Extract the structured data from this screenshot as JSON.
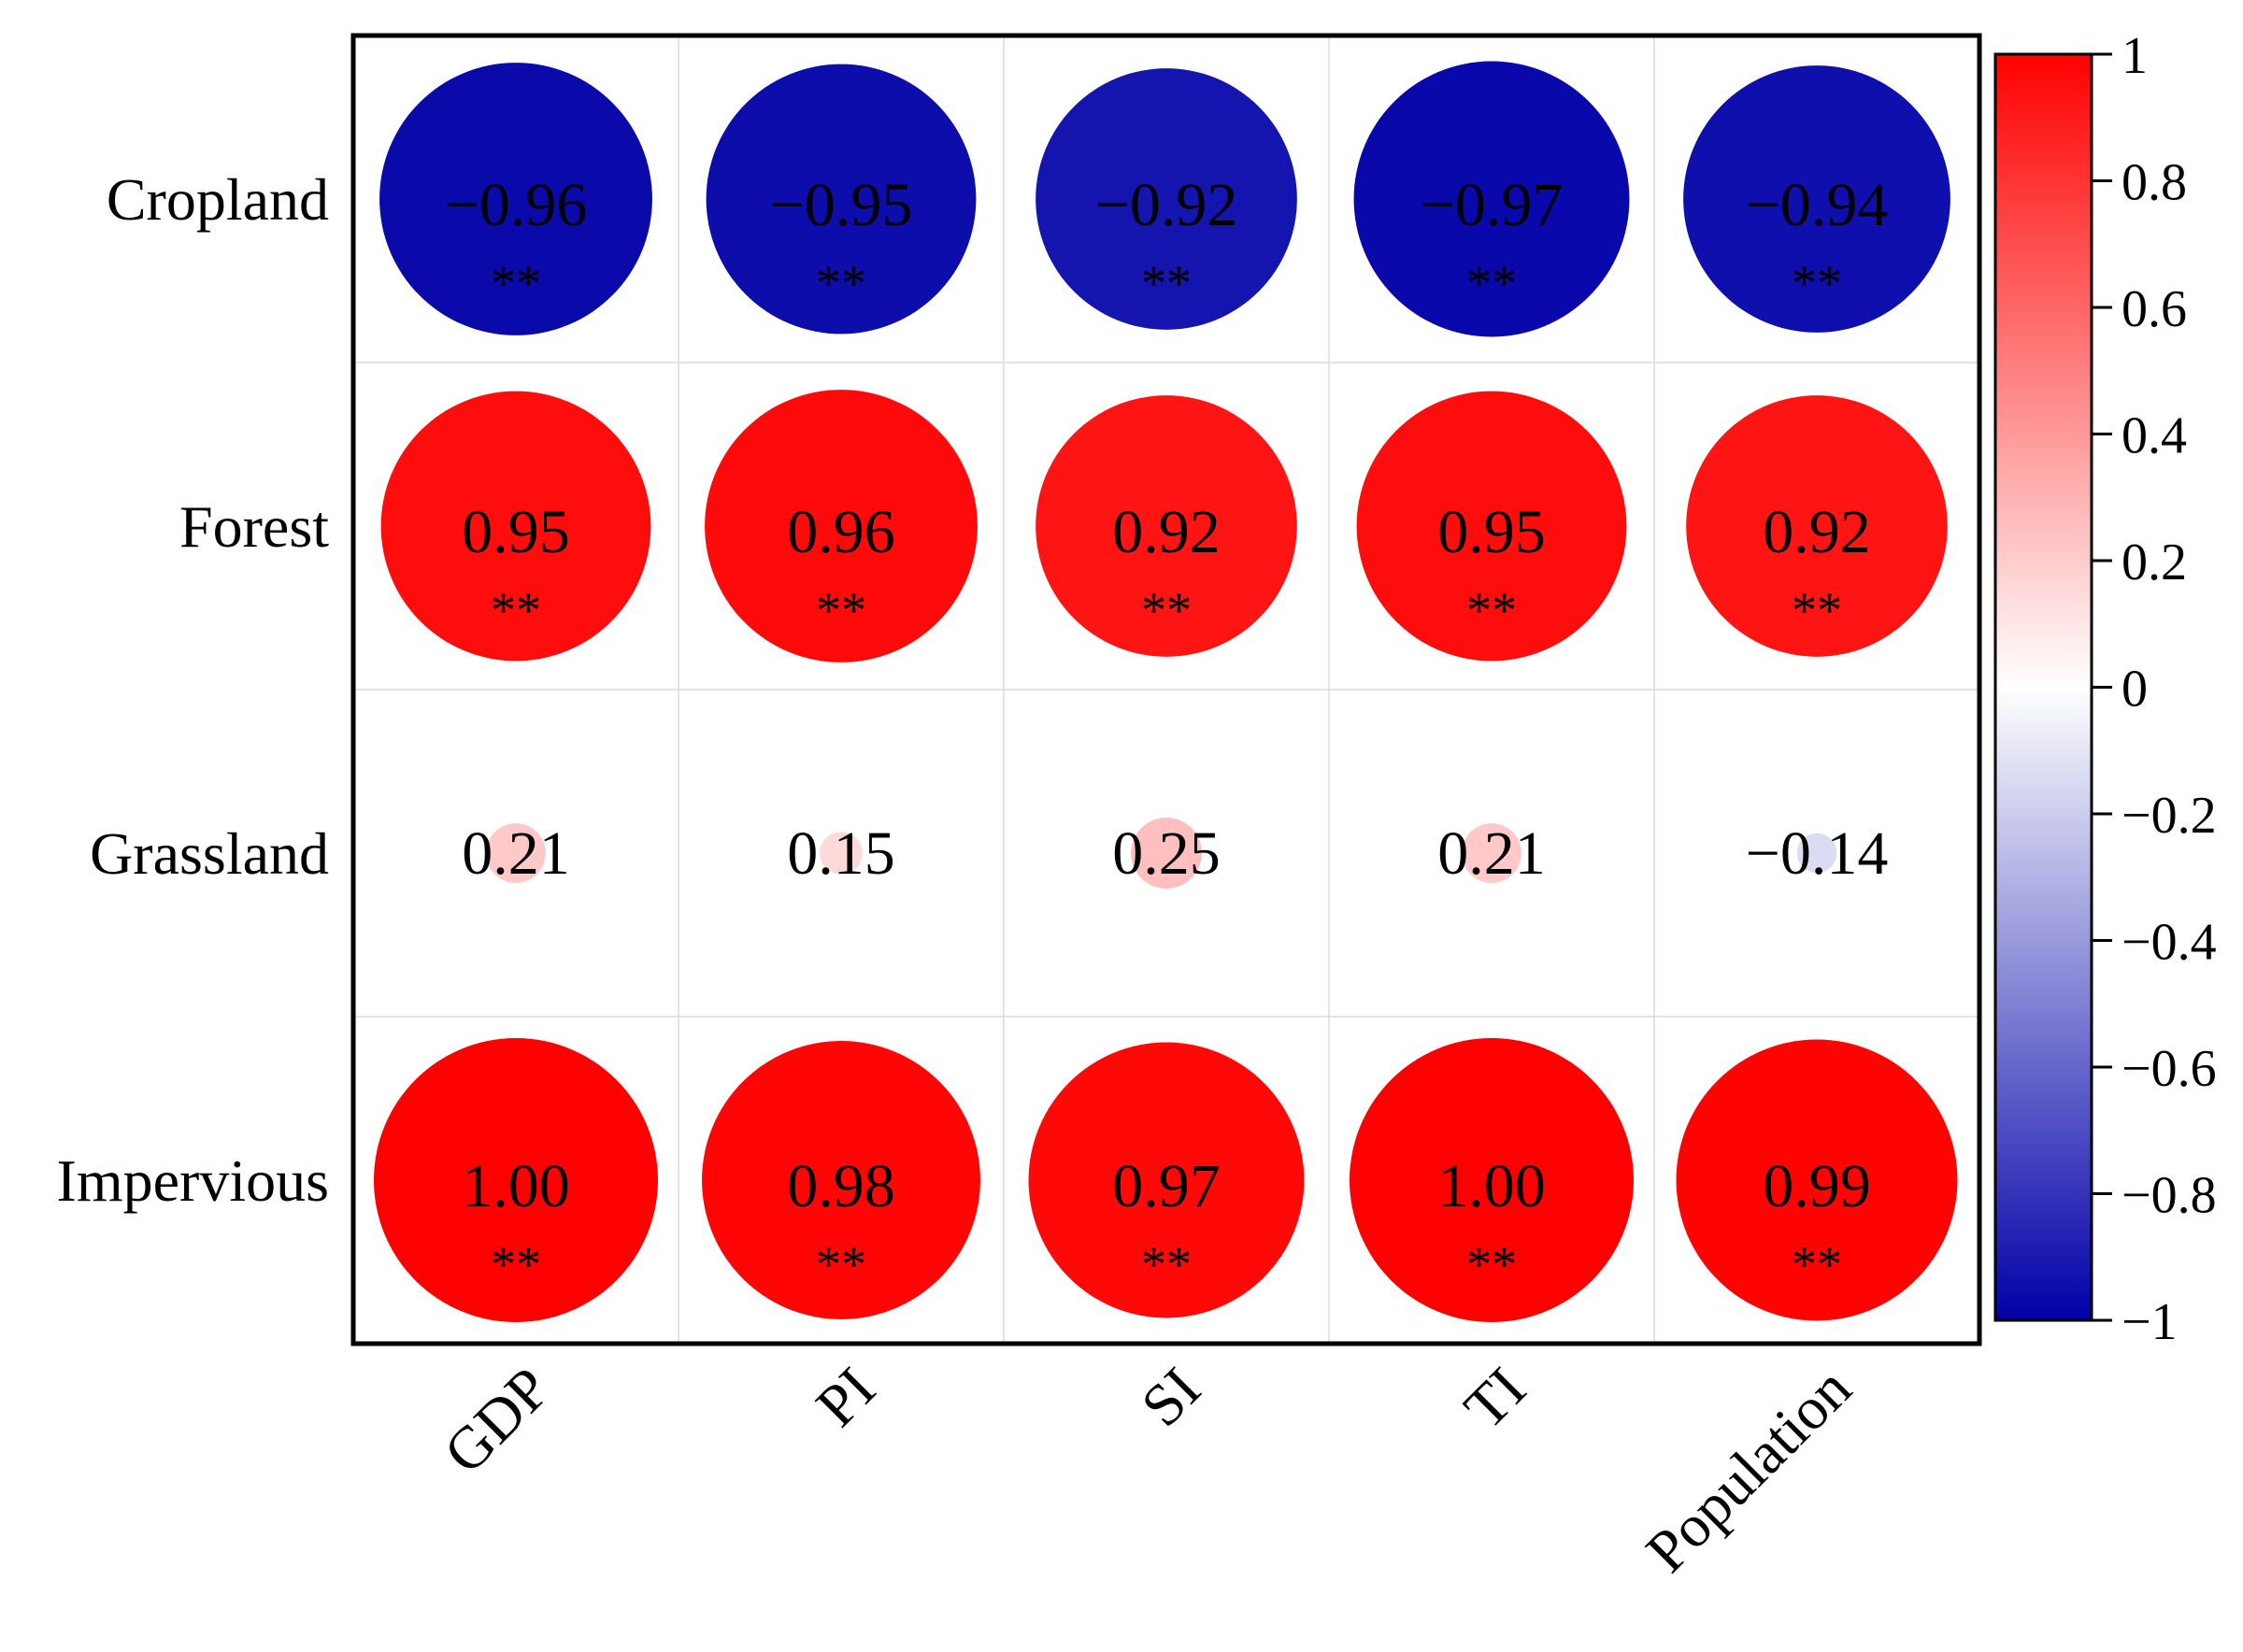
{
  "chart_data": {
    "type": "heatmap",
    "rows": [
      "Cropland",
      "Forest",
      "Grassland",
      "Impervious"
    ],
    "columns": [
      "GDP",
      "PI",
      "SI",
      "TI",
      "Population"
    ],
    "values": [
      [
        -0.96,
        -0.95,
        -0.92,
        -0.97,
        -0.94
      ],
      [
        0.95,
        0.96,
        0.92,
        0.95,
        0.92
      ],
      [
        0.21,
        0.15,
        0.25,
        0.21,
        -0.14
      ],
      [
        1.0,
        0.98,
        0.97,
        1.0,
        0.99
      ]
    ],
    "value_labels": [
      [
        "−0.96",
        "−0.95",
        "−0.92",
        "−0.97",
        "−0.94"
      ],
      [
        "0.95",
        "0.96",
        "0.92",
        "0.95",
        "0.92"
      ],
      [
        "0.21",
        "0.15",
        "0.25",
        "0.21",
        "−0.14"
      ],
      [
        "1.00",
        "0.98",
        "0.97",
        "1.00",
        "0.99"
      ]
    ],
    "significance": [
      [
        "**",
        "**",
        "**",
        "**",
        "**"
      ],
      [
        "**",
        "**",
        "**",
        "**",
        "**"
      ],
      [
        "",
        "",
        "",
        "",
        ""
      ],
      [
        "**",
        "**",
        "**",
        "**",
        "**"
      ]
    ],
    "colorbar": {
      "min": -1,
      "max": 1,
      "ticks": [
        "1",
        "0.8",
        "0.6",
        "0.4",
        "0.2",
        "0",
        "−0.2",
        "−0.4",
        "−0.6",
        "−0.8",
        "−1"
      ],
      "tick_values": [
        1,
        0.8,
        0.6,
        0.4,
        0.2,
        0,
        -0.2,
        -0.4,
        -0.6,
        -0.8,
        -1
      ],
      "colors": {
        "negative": "#0000a8",
        "zero": "#ffffff",
        "positive": "#ff0000"
      },
      "placement": "right"
    },
    "grid": true,
    "marker": "circle sized by |r|"
  }
}
